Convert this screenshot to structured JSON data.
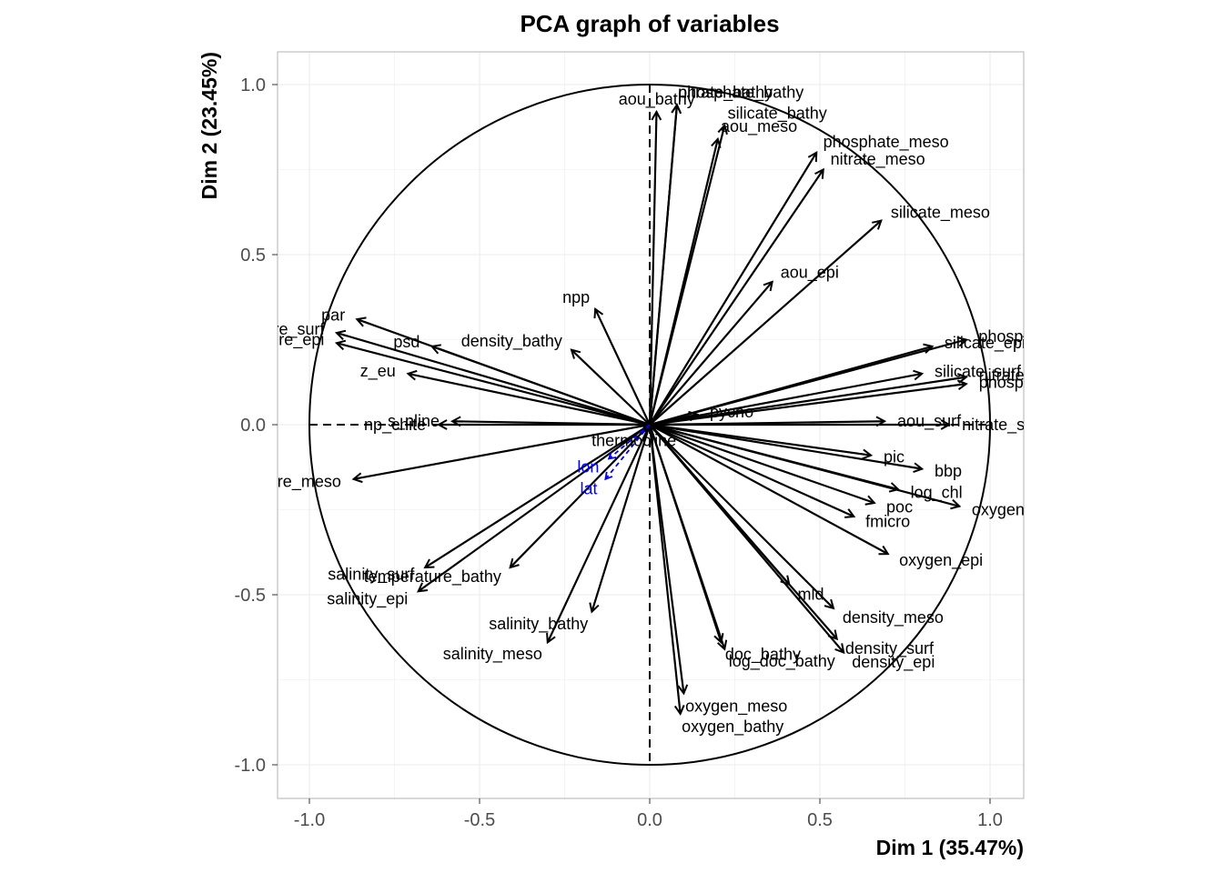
{
  "chart_data": {
    "type": "scatter",
    "title": "PCA graph of variables",
    "xlabel": "Dim 1 (35.47%)",
    "ylabel": "Dim 2 (23.45%)",
    "xlim": [
      -1.1,
      1.1
    ],
    "ylim": [
      -1.1,
      1.1
    ],
    "x_ticks": [
      -1.0,
      -0.5,
      0.0,
      0.5,
      1.0
    ],
    "x_tick_labels": [
      "-1.0",
      "-0.5",
      "0.0",
      "0.5",
      "1.0"
    ],
    "y_ticks": [
      -1.0,
      -0.5,
      0.0,
      0.5,
      1.0
    ],
    "y_tick_labels": [
      "-1.0",
      "-0.5",
      "0.0",
      "0.5",
      "1.0"
    ],
    "grid": true,
    "unit_circle": true,
    "colors": {
      "active": "#000000",
      "supplementary": "#0000ff",
      "grid": "#ebebeb",
      "panel_border": "#b3b3b3"
    },
    "series": [
      {
        "name": "active",
        "variables": [
          {
            "label": "phosphate_bathy",
            "x": 0.08,
            "y": 0.94
          },
          {
            "label": "nitrate_bathy",
            "x": 0.08,
            "y": 0.94
          },
          {
            "label": "aou_bathy",
            "x": 0.02,
            "y": 0.92
          },
          {
            "label": "silicate_bathy",
            "x": 0.22,
            "y": 0.88
          },
          {
            "label": "aou_meso",
            "x": 0.2,
            "y": 0.84
          },
          {
            "label": "phosphate_meso",
            "x": 0.49,
            "y": 0.8
          },
          {
            "label": "nitrate_meso",
            "x": 0.51,
            "y": 0.75
          },
          {
            "label": "silicate_meso",
            "x": 0.68,
            "y": 0.6
          },
          {
            "label": "aou_epi",
            "x": 0.36,
            "y": 0.42
          },
          {
            "label": "npp",
            "x": -0.16,
            "y": 0.34
          },
          {
            "label": "density_bathy",
            "x": -0.23,
            "y": 0.22
          },
          {
            "label": "psd",
            "x": -0.64,
            "y": 0.23
          },
          {
            "label": "par",
            "x": -0.86,
            "y": 0.31
          },
          {
            "label": "temperature_surf",
            "x": -0.92,
            "y": 0.27
          },
          {
            "label": "temperature_epi",
            "x": -0.92,
            "y": 0.24
          },
          {
            "label": "z_eu",
            "x": -0.71,
            "y": 0.15
          },
          {
            "label": "s_nline",
            "x": -0.58,
            "y": 0.01
          },
          {
            "label": "np_chite",
            "x": -0.62,
            "y": 0.0
          },
          {
            "label": "phosphate_epi",
            "x": 0.93,
            "y": 0.25
          },
          {
            "label": "silicate_epi",
            "x": 0.83,
            "y": 0.23
          },
          {
            "label": "silicate_surf",
            "x": 0.8,
            "y": 0.15
          },
          {
            "label": "nitrate_epi",
            "x": 0.93,
            "y": 0.14
          },
          {
            "label": "phosphate_surf",
            "x": 0.93,
            "y": 0.12
          },
          {
            "label": "aou_surf",
            "x": 0.69,
            "y": 0.01
          },
          {
            "label": "nitrate_surf",
            "x": 0.88,
            "y": 0.0
          },
          {
            "label": "pycno",
            "x": 0.14,
            "y": 0.03
          },
          {
            "label": "thermocline",
            "x": -0.02,
            "y": -0.02
          },
          {
            "label": "pic",
            "x": 0.65,
            "y": -0.09
          },
          {
            "label": "bbp",
            "x": 0.8,
            "y": -0.13
          },
          {
            "label": "log_chl",
            "x": 0.73,
            "y": -0.19
          },
          {
            "label": "poc",
            "x": 0.66,
            "y": -0.23
          },
          {
            "label": "oxygen_surf",
            "x": 0.91,
            "y": -0.24
          },
          {
            "label": "fmicro",
            "x": 0.6,
            "y": -0.27
          },
          {
            "label": "oxygen_epi",
            "x": 0.7,
            "y": -0.38
          },
          {
            "label": "temperature_meso",
            "x": -0.87,
            "y": -0.16
          },
          {
            "label": "salinity_surf",
            "x": -0.66,
            "y": -0.42
          },
          {
            "label": "temperature_bathy",
            "x": -0.41,
            "y": -0.42
          },
          {
            "label": "salinity_epi",
            "x": -0.68,
            "y": -0.49
          },
          {
            "label": "salinity_bathy",
            "x": -0.17,
            "y": -0.55
          },
          {
            "label": "salinity_meso",
            "x": -0.3,
            "y": -0.64
          },
          {
            "label": "mld",
            "x": 0.41,
            "y": -0.47
          },
          {
            "label": "density_meso",
            "x": 0.54,
            "y": -0.54
          },
          {
            "label": "density_surf",
            "x": 0.55,
            "y": -0.63
          },
          {
            "label": "density_epi",
            "x": 0.57,
            "y": -0.67
          },
          {
            "label": "doc_bathy",
            "x": 0.21,
            "y": -0.64
          },
          {
            "label": "log_doc_bathy",
            "x": 0.22,
            "y": -0.66
          },
          {
            "label": "oxygen_meso",
            "x": 0.1,
            "y": -0.79
          },
          {
            "label": "oxygen_bathy",
            "x": 0.09,
            "y": -0.85
          }
        ]
      },
      {
        "name": "supplementary",
        "variables": [
          {
            "label": "lon",
            "x": -0.12,
            "y": -0.1
          },
          {
            "label": "lat",
            "x": -0.13,
            "y": -0.16
          }
        ]
      }
    ]
  }
}
